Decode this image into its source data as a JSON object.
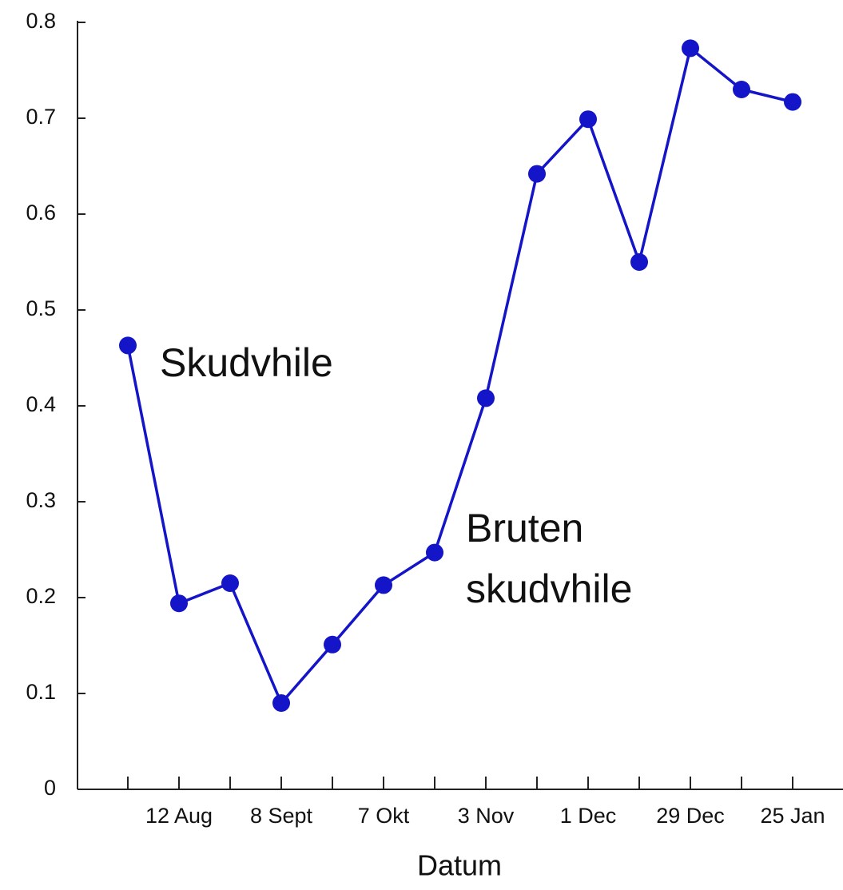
{
  "chart_data": {
    "type": "line",
    "xlabel": "Datum",
    "categories": [
      null,
      "12 Aug",
      null,
      "8 Sept",
      null,
      "7 Okt",
      null,
      "3 Nov",
      null,
      "1 Dec",
      null,
      "29 Dec",
      null,
      "25 Jan"
    ],
    "series": [
      {
        "color": "#1414c8",
        "values": [
          0.463,
          0.194,
          0.215,
          0.09,
          0.151,
          0.213,
          0.247,
          0.408,
          0.642,
          0.699,
          0.55,
          0.773,
          0.73,
          0.717
        ]
      }
    ],
    "ylim": [
      0,
      0.8
    ],
    "yticks": [
      0,
      0.1,
      0.2,
      0.3,
      0.4,
      0.5,
      0.6,
      0.7,
      0.8
    ],
    "grid": false,
    "annotations": [
      {
        "lines": [
          "Skudvhile"
        ]
      },
      {
        "lines": [
          "Bruten",
          "skudvhile"
        ]
      }
    ]
  }
}
